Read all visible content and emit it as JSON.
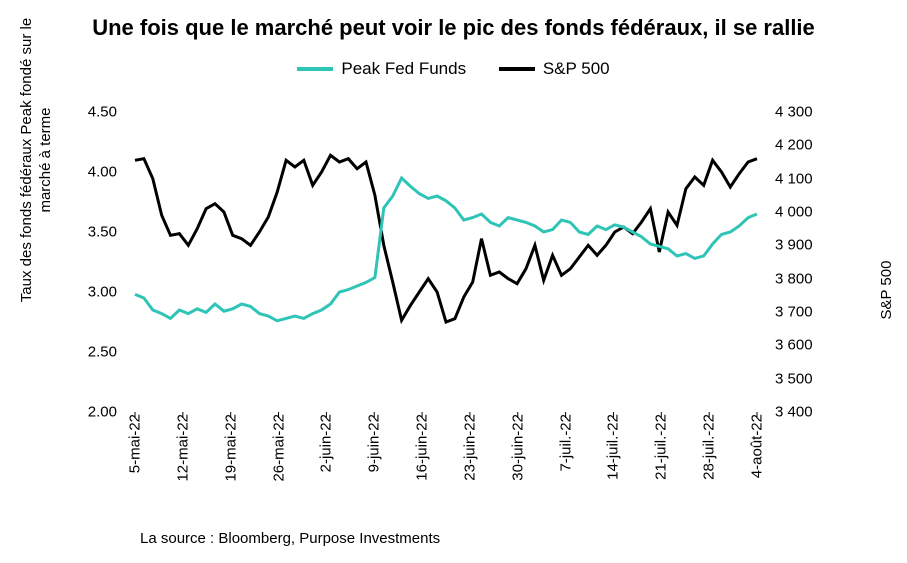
{
  "title": "Une fois que le marché peut voir le pic des fonds fédéraux, il se rallie",
  "legend": {
    "series1": {
      "label": "Peak Fed Funds",
      "color": "#2ec4b6"
    },
    "series2": {
      "label": "S&P 500",
      "color": "#000000"
    }
  },
  "axis_left": {
    "title": "Taux des fonds fédéraux Peak fondé sur le marché à terme",
    "min": 2.0,
    "max": 4.5,
    "tick_step": 0.5,
    "ticks": [
      2.0,
      2.5,
      3.0,
      3.5,
      4.0,
      4.5
    ],
    "tick_labels": [
      "2.00",
      "2.50",
      "3.00",
      "3.50",
      "4.00",
      "4.50"
    ],
    "label_fontsize": 15
  },
  "axis_right": {
    "title": "S&P 500",
    "min": 3400,
    "max": 4300,
    "tick_step": 100,
    "ticks": [
      3400,
      3500,
      3600,
      3700,
      3800,
      3900,
      4000,
      4100,
      4200,
      4300
    ],
    "tick_labels": [
      "3 400",
      "3 500",
      "3 600",
      "3 700",
      "3 800",
      "3 900",
      "4 000",
      "4 100",
      "4 200",
      "4 300"
    ],
    "label_fontsize": 15
  },
  "x_axis": {
    "categories": [
      "5-mai-22",
      "12-mai-22",
      "19-mai-22",
      "26-mai-22",
      "2-juin-22",
      "9-juin-22",
      "16-juin-22",
      "23-juin-22",
      "30-juin-22",
      "7-juil.-22",
      "14-juil.-22",
      "21-juil.-22",
      "28-juil.-22",
      "4-août-22"
    ],
    "tick_marks": true,
    "tick_length": 6,
    "label_fontsize": 15,
    "label_rotation": -90
  },
  "series": {
    "peak_fed_funds": {
      "axis": "left",
      "color": "#2ec4b6",
      "line_width": 3,
      "values": [
        2.98,
        2.95,
        2.85,
        2.82,
        2.78,
        2.85,
        2.82,
        2.86,
        2.83,
        2.9,
        2.84,
        2.86,
        2.9,
        2.88,
        2.82,
        2.8,
        2.76,
        2.78,
        2.8,
        2.78,
        2.82,
        2.85,
        2.9,
        3.0,
        3.02,
        3.05,
        3.08,
        3.12,
        3.7,
        3.8,
        3.95,
        3.88,
        3.82,
        3.78,
        3.8,
        3.76,
        3.7,
        3.6,
        3.62,
        3.65,
        3.58,
        3.55,
        3.62,
        3.6,
        3.58,
        3.55,
        3.5,
        3.52,
        3.6,
        3.58,
        3.5,
        3.48,
        3.55,
        3.52,
        3.56,
        3.54,
        3.5,
        3.46,
        3.4,
        3.38,
        3.36,
        3.3,
        3.32,
        3.28,
        3.3,
        3.4,
        3.48,
        3.5,
        3.55,
        3.62,
        3.65
      ]
    },
    "sp500": {
      "axis": "right",
      "color": "#000000",
      "line_width": 3,
      "values": [
        4155,
        4160,
        4100,
        3990,
        3930,
        3935,
        3900,
        3950,
        4010,
        4025,
        4000,
        3930,
        3920,
        3900,
        3940,
        3985,
        4060,
        4155,
        4135,
        4155,
        4080,
        4120,
        4170,
        4150,
        4160,
        4130,
        4150,
        4050,
        3900,
        3790,
        3675,
        3720,
        3760,
        3800,
        3760,
        3670,
        3680,
        3745,
        3790,
        3920,
        3810,
        3820,
        3800,
        3785,
        3830,
        3900,
        3795,
        3870,
        3810,
        3830,
        3865,
        3900,
        3870,
        3900,
        3940,
        3955,
        3935,
        3970,
        4010,
        3880,
        4000,
        3960,
        4070,
        4105,
        4080,
        4155,
        4120,
        4075,
        4115,
        4150,
        4160
      ]
    }
  },
  "styling": {
    "background_color": "#ffffff",
    "title_fontsize": 22,
    "title_fontweight": "bold",
    "legend_fontsize": 17,
    "font_family": "Arial",
    "grid": false,
    "plot_border": false
  },
  "source": "La source : Bloomberg, Purpose Investments"
}
